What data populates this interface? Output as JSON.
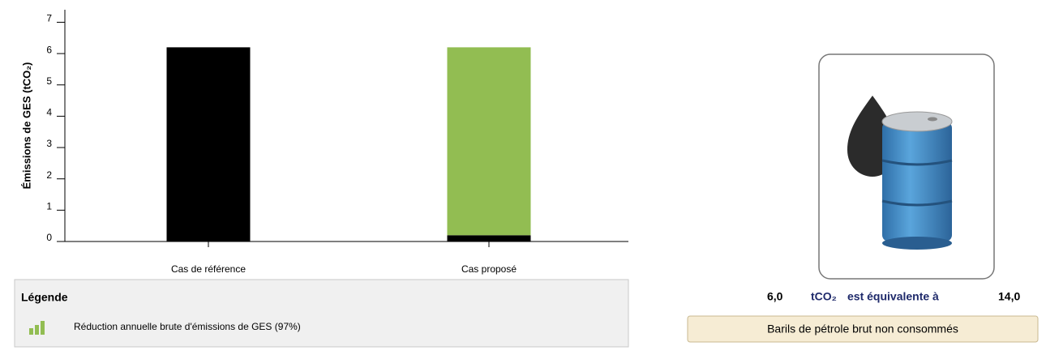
{
  "chart_data": {
    "type": "stacked_bar",
    "y_label": "Émissions de GES (tCO₂)",
    "categories": [
      "Cas de référence",
      "Cas proposé"
    ],
    "series": [
      {
        "color": "#000000",
        "values": [
          6.2,
          0.2
        ]
      },
      {
        "name": "Réduction annuelle brute d'émissions de GES (97%)",
        "color": "#92bd52",
        "values": [
          0,
          6.0
        ]
      }
    ],
    "ylim": [
      0,
      7.4
    ],
    "yticks": [
      0,
      1,
      2,
      3,
      4,
      5,
      6,
      7
    ],
    "legend_title": "Légende"
  },
  "equivalence": {
    "amount": "6,0",
    "unit": "tCO₂",
    "text": "est équivalente à",
    "result": "14,0",
    "button": "Barils de pétrole brut non consommés"
  }
}
